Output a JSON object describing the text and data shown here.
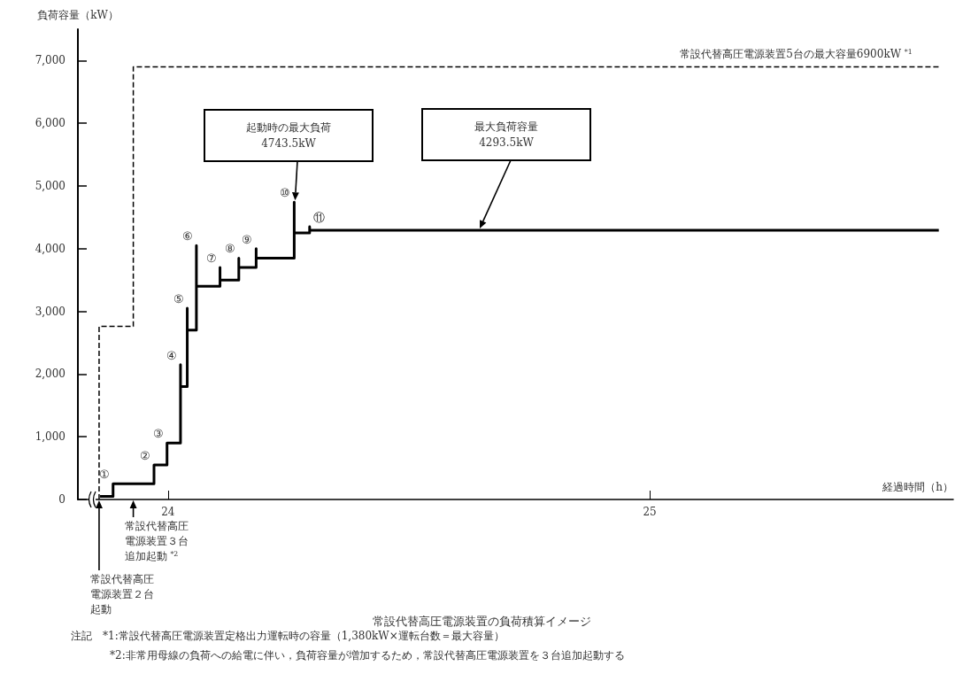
{
  "chart_data": {
    "type": "step",
    "title": "常設代替高圧電源装置の負荷積算イメージ",
    "xlabel": "経過時間（h）",
    "ylabel": "負荷容量（kW）",
    "xlim": [
      23.813,
      25.63
    ],
    "xticks": [
      24,
      25
    ],
    "ylim": [
      0,
      7500
    ],
    "yticks": [
      0,
      {
        "value": 1000,
        "label": "1,000"
      },
      {
        "value": 2000,
        "label": "2,000"
      },
      {
        "value": 3000,
        "label": "3,000"
      },
      {
        "value": 4000,
        "label": "4,000"
      },
      {
        "value": 5000,
        "label": "5,000"
      },
      {
        "value": 6000,
        "label": "6,000"
      },
      {
        "value": 7000,
        "label": "7,000"
      }
    ],
    "series": [
      {
        "name": "常設代替高圧電源装置5台の最大容量6900kW $^{*1}$",
        "color": "#000000",
        "line_style": "dashed",
        "x": [
          23.857,
          23.857,
          23.928,
          25.6
        ],
        "values": [
          0,
          2760,
          6900,
          6900
        ]
      },
      {
        "color": "#000000",
        "line_style": "solid",
        "x": [
          23.859,
          23.886,
          23.971,
          23.998,
          24.026,
          24.026,
          24.04,
          24.04,
          24.059,
          24.059,
          24.108,
          24.108,
          24.147,
          24.147,
          24.183,
          24.183,
          24.262,
          24.262,
          24.294,
          24.294,
          25.6
        ],
        "values": [
          50,
          250,
          550,
          900,
          2150,
          1800,
          3050,
          2700,
          4050,
          3400,
          3700,
          3500,
          3850,
          3700,
          4000,
          3850,
          4743.5,
          4250,
          4350,
          4293.5,
          4293.5
        ]
      }
    ],
    "annotations": [
      {
        "text": "①",
        "x": 23.886,
        "y": 250
      },
      {
        "text": "②",
        "x": 23.971,
        "y": 550
      },
      {
        "text": "③",
        "x": 23.998,
        "y": 900
      },
      {
        "text": "④",
        "x": 24.026,
        "y": 2150
      },
      {
        "text": "⑤",
        "x": 24.04,
        "y": 3050
      },
      {
        "text": "⑥",
        "x": 24.059,
        "y": 4050
      },
      {
        "text": "⑦",
        "x": 24.108,
        "y": 3700
      },
      {
        "text": "⑧",
        "x": 24.147,
        "y": 3850
      },
      {
        "text": "⑨",
        "x": 24.183,
        "y": 4000
      },
      {
        "text": "⑩",
        "x": 24.262,
        "y": 4743.5
      },
      {
        "text": "⑪",
        "x": 24.294,
        "y": 4350
      },
      "起動時の最大負荷\n4743.5kW",
      "最大負荷容量\n4293.5kW",
      "常設代替高圧電源装置２台起動",
      "常設代替高圧電源装置３台追加起動 $^{*2}$",
      "注記　*1:常設代替高圧電源装置定格出力運転時の容量（1,380kW×運転台数＝最大容量）",
      "*2:非常用母線の負荷への給電に伴い，負荷容量が増加するため，常設代替高圧電源装置を３台追加起動する"
    ]
  }
}
